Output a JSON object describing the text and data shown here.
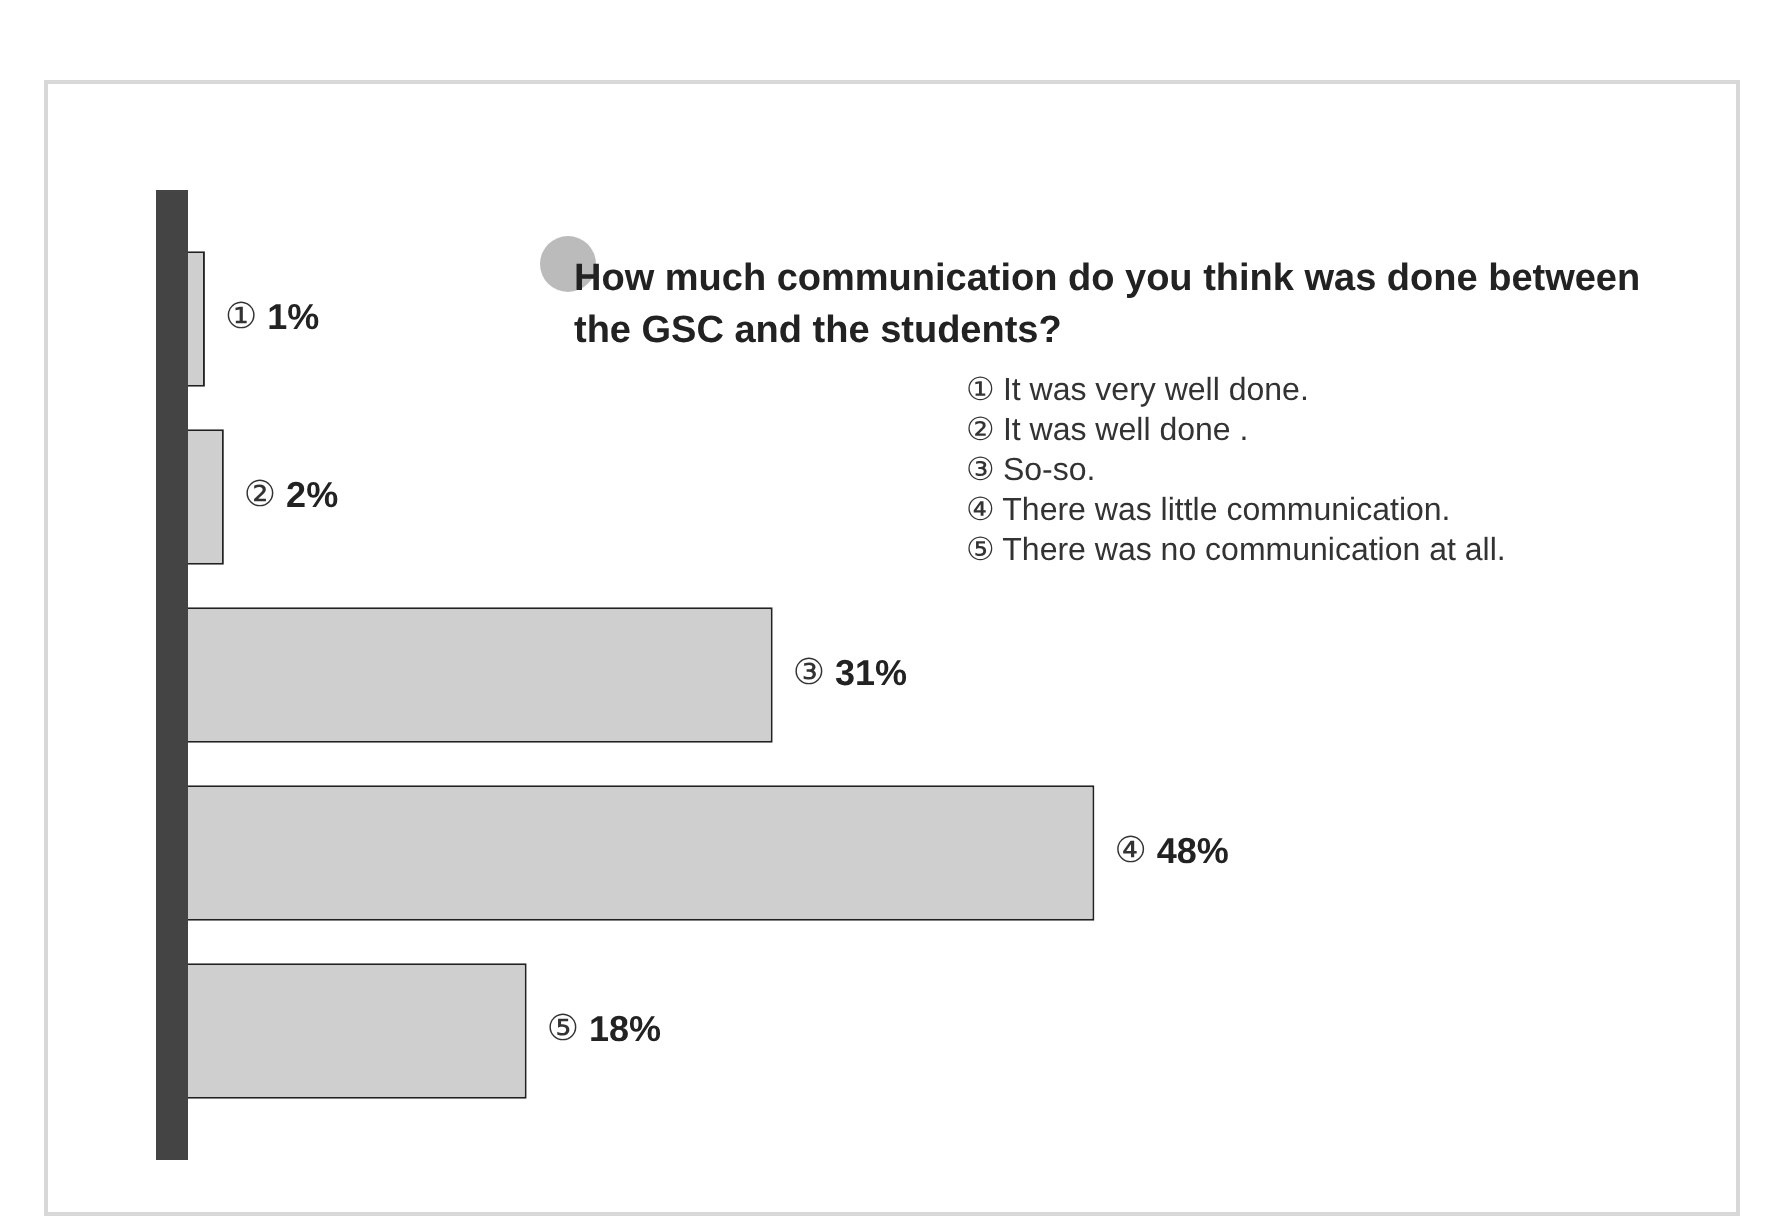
{
  "chart_data": {
    "type": "bar",
    "orientation": "horizontal",
    "title": "How much communication do you think was done between the GSC and the students?",
    "categories": [
      "①",
      "②",
      "③",
      "④",
      "⑤"
    ],
    "values": [
      1,
      2,
      31,
      48,
      18
    ],
    "value_labels": [
      "1%",
      "2%",
      "31%",
      "48%",
      "18%"
    ],
    "color": "#cfcfcf",
    "annotations": [
      "① It was very well done.",
      "② It was well done .",
      "③ So-so.",
      "④ There was little communication.",
      "⑤ There was no communication at all."
    ],
    "legend": false
  }
}
